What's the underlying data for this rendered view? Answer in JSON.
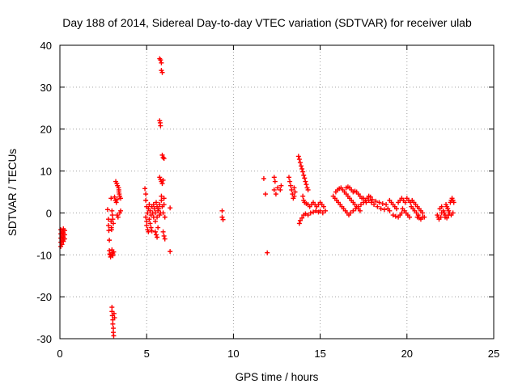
{
  "chart_data": {
    "type": "scatter",
    "title": "Day 188 of 2014, Sidereal Day-to-day VTEC variation (SDTVAR) for receiver ulab",
    "xlabel": "GPS time / hours",
    "ylabel": "SDTVAR / TECUs",
    "xlim": [
      0,
      25
    ],
    "ylim": [
      -30,
      40
    ],
    "xticks": [
      0,
      5,
      10,
      15,
      20,
      25
    ],
    "yticks": [
      -30,
      -20,
      -10,
      0,
      10,
      20,
      30,
      40
    ],
    "xtick_labels": [
      "0",
      "5",
      "10",
      "15",
      "20",
      "25"
    ],
    "ytick_labels": [
      "-30",
      "-20",
      "-10",
      "0",
      "10",
      "20",
      "30",
      "40"
    ],
    "grid": true,
    "marker": "+",
    "color": "#ff0000",
    "series": [
      {
        "name": "SDTVAR",
        "points": [
          [
            0.05,
            -4.0
          ],
          [
            0.05,
            -5.0
          ],
          [
            0.05,
            -6.0
          ],
          [
            0.05,
            -7.0
          ],
          [
            0.05,
            -8.0
          ],
          [
            0.12,
            -4.5
          ],
          [
            0.12,
            -5.5
          ],
          [
            0.12,
            -6.5
          ],
          [
            0.12,
            -7.5
          ],
          [
            0.2,
            -3.8
          ],
          [
            0.2,
            -4.8
          ],
          [
            0.2,
            -5.8
          ],
          [
            0.2,
            -6.8
          ],
          [
            0.28,
            -4.2
          ],
          [
            0.28,
            -5.2
          ],
          [
            0.28,
            -6.2
          ],
          [
            2.75,
            0.8
          ],
          [
            2.8,
            -1.5
          ],
          [
            2.8,
            -3.0
          ],
          [
            2.82,
            -4.2
          ],
          [
            2.85,
            -6.5
          ],
          [
            2.85,
            -9.0
          ],
          [
            2.88,
            -9.8
          ],
          [
            2.9,
            -10.0
          ],
          [
            2.92,
            -10.5
          ],
          [
            2.95,
            -2.0
          ],
          [
            2.97,
            -3.5
          ],
          [
            2.98,
            -4.0
          ],
          [
            2.95,
            3.5
          ],
          [
            3.0,
            -8.8
          ],
          [
            3.02,
            -9.5
          ],
          [
            3.05,
            -9.8
          ],
          [
            3.05,
            -10.2
          ],
          [
            3.1,
            -9.3
          ],
          [
            3.0,
            -22.5
          ],
          [
            3.0,
            -23.5
          ],
          [
            3.02,
            -24.5
          ],
          [
            3.05,
            -25.5
          ],
          [
            3.05,
            -26.5
          ],
          [
            3.08,
            -27.5
          ],
          [
            3.08,
            -28.5
          ],
          [
            3.1,
            -29.3
          ],
          [
            3.12,
            -24.0
          ],
          [
            3.15,
            -25.0
          ],
          [
            3.0,
            0.5
          ],
          [
            3.02,
            -0.5
          ],
          [
            3.05,
            -1.5
          ],
          [
            3.08,
            -2.5
          ],
          [
            3.15,
            3.8
          ],
          [
            3.2,
            3.0
          ],
          [
            3.25,
            2.5
          ],
          [
            3.3,
            3.2
          ],
          [
            3.22,
            7.5
          ],
          [
            3.28,
            7.0
          ],
          [
            3.32,
            6.5
          ],
          [
            3.38,
            6.0
          ],
          [
            3.4,
            5.0
          ],
          [
            3.45,
            4.0
          ],
          [
            3.5,
            3.5
          ],
          [
            3.3,
            -0.5
          ],
          [
            3.35,
            -1.0
          ],
          [
            3.45,
            0.0
          ],
          [
            3.5,
            0.5
          ],
          [
            3.4,
            5.5
          ],
          [
            3.42,
            4.5
          ],
          [
            4.9,
            5.8
          ],
          [
            4.95,
            4.5
          ],
          [
            4.95,
            3.0
          ],
          [
            5.0,
            1.5
          ],
          [
            4.95,
            -1.0
          ],
          [
            5.0,
            -2.0
          ],
          [
            5.0,
            -3.0
          ],
          [
            5.05,
            -4.0
          ],
          [
            5.1,
            -4.5
          ],
          [
            5.05,
            0.0
          ],
          [
            5.1,
            1.0
          ],
          [
            5.15,
            -1.5
          ],
          [
            5.2,
            -2.5
          ],
          [
            5.25,
            -3.5
          ],
          [
            5.3,
            -4.3
          ],
          [
            5.15,
            2.0
          ],
          [
            5.2,
            0.5
          ],
          [
            5.25,
            -0.5
          ],
          [
            5.3,
            1.5
          ],
          [
            5.35,
            0.0
          ],
          [
            5.4,
            -1.0
          ],
          [
            5.4,
            2.0
          ],
          [
            5.45,
            1.0
          ],
          [
            5.5,
            0.0
          ],
          [
            5.5,
            -2.0
          ],
          [
            5.55,
            2.5
          ],
          [
            5.6,
            1.5
          ],
          [
            5.6,
            -1.0
          ],
          [
            5.65,
            0.5
          ],
          [
            5.7,
            1.0
          ],
          [
            5.75,
            2.0
          ],
          [
            5.75,
            -0.5
          ],
          [
            5.8,
            0.0
          ],
          [
            5.5,
            -4.5
          ],
          [
            5.55,
            -5.2
          ],
          [
            5.6,
            -5.8
          ],
          [
            5.65,
            -3.5
          ],
          [
            5.85,
            3.0
          ],
          [
            5.9,
            1.5
          ],
          [
            5.95,
            0.0
          ],
          [
            6.0,
            2.0
          ],
          [
            6.0,
            3.5
          ],
          [
            6.05,
            -1.0
          ],
          [
            5.75,
            36.8
          ],
          [
            5.8,
            36.5
          ],
          [
            5.85,
            35.8
          ],
          [
            5.85,
            34.0
          ],
          [
            5.9,
            33.5
          ],
          [
            5.75,
            22.0
          ],
          [
            5.78,
            21.5
          ],
          [
            5.8,
            20.8
          ],
          [
            5.9,
            13.8
          ],
          [
            5.95,
            13.2
          ],
          [
            6.0,
            13.0
          ],
          [
            5.75,
            8.5
          ],
          [
            5.8,
            8.0
          ],
          [
            5.85,
            7.5
          ],
          [
            5.9,
            7.0
          ],
          [
            5.95,
            7.8
          ],
          [
            5.85,
            4.0
          ],
          [
            5.95,
            -4.5
          ],
          [
            6.0,
            -5.5
          ],
          [
            6.05,
            -6.2
          ],
          [
            6.35,
            1.2
          ],
          [
            6.35,
            -9.2
          ],
          [
            9.35,
            0.5
          ],
          [
            9.35,
            -1.0
          ],
          [
            9.4,
            -1.6
          ],
          [
            11.75,
            8.2
          ],
          [
            11.85,
            4.5
          ],
          [
            11.95,
            -9.5
          ],
          [
            12.35,
            8.5
          ],
          [
            12.4,
            7.5
          ],
          [
            12.35,
            5.5
          ],
          [
            12.45,
            4.5
          ],
          [
            12.55,
            6.0
          ],
          [
            12.7,
            5.5
          ],
          [
            12.75,
            6.5
          ],
          [
            13.2,
            8.5
          ],
          [
            13.25,
            7.5
          ],
          [
            13.3,
            6.5
          ],
          [
            13.35,
            5.5
          ],
          [
            13.4,
            4.5
          ],
          [
            13.45,
            3.5
          ],
          [
            13.5,
            4.0
          ],
          [
            13.55,
            5.0
          ],
          [
            13.5,
            6.0
          ],
          [
            13.75,
            13.5
          ],
          [
            13.8,
            12.8
          ],
          [
            13.85,
            12.0
          ],
          [
            13.9,
            11.2
          ],
          [
            13.95,
            10.5
          ],
          [
            14.0,
            9.8
          ],
          [
            14.05,
            9.0
          ],
          [
            14.1,
            8.3
          ],
          [
            14.15,
            7.5
          ],
          [
            14.2,
            6.8
          ],
          [
            14.25,
            6.0
          ],
          [
            14.3,
            5.5
          ],
          [
            14.0,
            4.0
          ],
          [
            14.05,
            3.0
          ],
          [
            14.1,
            2.5
          ],
          [
            14.2,
            2.2
          ],
          [
            14.3,
            2.0
          ],
          [
            14.4,
            1.5
          ],
          [
            14.5,
            2.0
          ],
          [
            14.6,
            2.5
          ],
          [
            14.7,
            2.0
          ],
          [
            14.8,
            1.5
          ],
          [
            14.9,
            2.0
          ],
          [
            15.0,
            2.5
          ],
          [
            15.1,
            2.0
          ],
          [
            15.2,
            1.5
          ],
          [
            13.8,
            -2.5
          ],
          [
            13.85,
            -1.8
          ],
          [
            13.95,
            -1.2
          ],
          [
            14.05,
            -0.5
          ],
          [
            14.15,
            -0.2
          ],
          [
            14.3,
            -0.5
          ],
          [
            14.45,
            0.0
          ],
          [
            14.6,
            0.2
          ],
          [
            14.75,
            0.5
          ],
          [
            14.9,
            0.2
          ],
          [
            15.0,
            0.5
          ],
          [
            15.15,
            0.0
          ],
          [
            15.3,
            0.5
          ],
          [
            15.75,
            4.0
          ],
          [
            15.85,
            3.5
          ],
          [
            15.95,
            3.0
          ],
          [
            16.05,
            2.5
          ],
          [
            16.15,
            2.0
          ],
          [
            16.25,
            1.5
          ],
          [
            16.35,
            1.0
          ],
          [
            16.45,
            0.5
          ],
          [
            16.55,
            0.0
          ],
          [
            16.65,
            -0.5
          ],
          [
            15.9,
            5.0
          ],
          [
            16.0,
            5.5
          ],
          [
            16.1,
            5.8
          ],
          [
            16.2,
            6.0
          ],
          [
            16.3,
            5.5
          ],
          [
            16.4,
            5.0
          ],
          [
            16.5,
            4.5
          ],
          [
            16.6,
            4.0
          ],
          [
            16.7,
            3.5
          ],
          [
            16.8,
            3.0
          ],
          [
            16.9,
            2.5
          ],
          [
            17.0,
            2.0
          ],
          [
            17.1,
            1.5
          ],
          [
            17.2,
            1.0
          ],
          [
            17.3,
            0.5
          ],
          [
            16.5,
            6.0
          ],
          [
            16.6,
            6.2
          ],
          [
            16.7,
            6.0
          ],
          [
            16.8,
            5.5
          ],
          [
            16.9,
            5.0
          ],
          [
            17.0,
            5.2
          ],
          [
            17.1,
            5.0
          ],
          [
            17.2,
            4.5
          ],
          [
            17.3,
            4.0
          ],
          [
            17.4,
            3.5
          ],
          [
            16.75,
            0.0
          ],
          [
            16.9,
            0.5
          ],
          [
            17.05,
            1.0
          ],
          [
            17.2,
            1.5
          ],
          [
            17.35,
            2.0
          ],
          [
            17.5,
            2.5
          ],
          [
            17.65,
            2.5
          ],
          [
            17.8,
            3.0
          ],
          [
            17.95,
            2.5
          ],
          [
            18.1,
            2.0
          ],
          [
            17.5,
            3.5
          ],
          [
            17.6,
            3.0
          ],
          [
            17.7,
            3.5
          ],
          [
            17.8,
            4.0
          ],
          [
            17.9,
            3.8
          ],
          [
            18.0,
            3.2
          ],
          [
            18.2,
            2.8
          ],
          [
            18.4,
            2.5
          ],
          [
            18.6,
            2.2
          ],
          [
            18.8,
            2.0
          ],
          [
            18.3,
            1.5
          ],
          [
            18.5,
            1.0
          ],
          [
            18.7,
            0.8
          ],
          [
            18.9,
            1.0
          ],
          [
            19.0,
            0.5
          ],
          [
            19.0,
            3.0
          ],
          [
            19.1,
            2.5
          ],
          [
            19.2,
            2.0
          ],
          [
            19.3,
            1.5
          ],
          [
            19.4,
            1.0
          ],
          [
            19.2,
            -0.5
          ],
          [
            19.35,
            -0.8
          ],
          [
            19.5,
            -1.0
          ],
          [
            19.6,
            -0.5
          ],
          [
            19.7,
            0.0
          ],
          [
            19.5,
            2.5
          ],
          [
            19.6,
            3.0
          ],
          [
            19.7,
            3.5
          ],
          [
            19.8,
            3.0
          ],
          [
            19.9,
            2.5
          ],
          [
            19.75,
            1.0
          ],
          [
            19.85,
            0.5
          ],
          [
            19.95,
            0.0
          ],
          [
            20.05,
            -0.5
          ],
          [
            20.15,
            -1.0
          ],
          [
            20.0,
            3.5
          ],
          [
            20.1,
            3.0
          ],
          [
            20.2,
            2.5
          ],
          [
            20.3,
            3.0
          ],
          [
            20.4,
            2.5
          ],
          [
            20.25,
            1.5
          ],
          [
            20.35,
            1.0
          ],
          [
            20.45,
            0.5
          ],
          [
            20.55,
            0.0
          ],
          [
            20.65,
            -0.5
          ],
          [
            20.5,
            2.0
          ],
          [
            20.6,
            1.5
          ],
          [
            20.7,
            1.0
          ],
          [
            20.8,
            0.5
          ],
          [
            20.9,
            0.0
          ],
          [
            20.6,
            -1.0
          ],
          [
            20.7,
            -1.2
          ],
          [
            20.8,
            -1.5
          ],
          [
            20.9,
            -1.0
          ],
          [
            21.0,
            -1.0
          ],
          [
            21.75,
            -0.5
          ],
          [
            21.8,
            -1.0
          ],
          [
            21.85,
            -1.5
          ],
          [
            21.95,
            -1.0
          ],
          [
            22.0,
            0.0
          ],
          [
            21.9,
            1.0
          ],
          [
            22.0,
            1.5
          ],
          [
            22.1,
            0.5
          ],
          [
            22.15,
            0.0
          ],
          [
            22.2,
            -0.5
          ],
          [
            22.25,
            2.0
          ],
          [
            22.3,
            1.5
          ],
          [
            22.35,
            1.0
          ],
          [
            22.4,
            0.5
          ],
          [
            22.45,
            0.0
          ],
          [
            22.5,
            2.5
          ],
          [
            22.55,
            3.0
          ],
          [
            22.6,
            3.5
          ],
          [
            22.65,
            3.0
          ],
          [
            22.7,
            2.5
          ],
          [
            22.2,
            -1.0
          ],
          [
            22.3,
            -1.2
          ],
          [
            22.4,
            -0.5
          ],
          [
            22.55,
            -0.5
          ],
          [
            22.65,
            0.0
          ]
        ]
      }
    ]
  }
}
